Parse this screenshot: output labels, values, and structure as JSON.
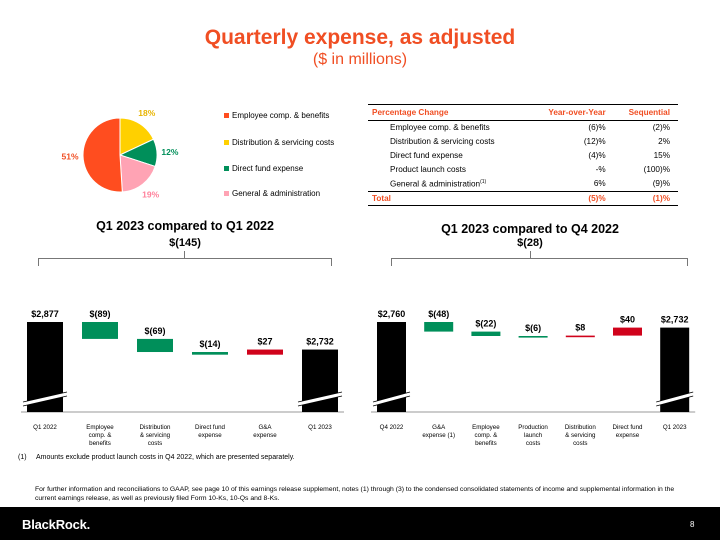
{
  "header": {
    "title": "Quarterly expense, as adjusted",
    "subtitle": "($ in millions)"
  },
  "legend": [
    {
      "label": "Employee comp. & benefits",
      "color": "#ff4d1f"
    },
    {
      "label": "Distribution & servicing costs",
      "color": "#ffd000"
    },
    {
      "label": "Direct fund expense",
      "color": "#008f5a"
    },
    {
      "label": "General & administration",
      "color": "#ffa3b4"
    }
  ],
  "pct_table": {
    "headers": [
      "Percentage Change",
      "Year-over-Year",
      "Sequential"
    ],
    "rows": [
      {
        "name": "Employee comp. & benefits",
        "sup": "",
        "yoy": "(6)%",
        "seq": "(2)%"
      },
      {
        "name": "Distribution & servicing costs",
        "sup": "",
        "yoy": "(12)%",
        "seq": "2%"
      },
      {
        "name": "Direct fund expense",
        "sup": "",
        "yoy": "(4)%",
        "seq": "15%"
      },
      {
        "name": "Product launch costs",
        "sup": "",
        "yoy": "-%",
        "seq": "(100)%"
      },
      {
        "name": "General & administration",
        "sup": "(1)",
        "yoy": "6%",
        "seq": "(9)%"
      }
    ],
    "total": {
      "name": "Total",
      "yoy": "(5)%",
      "seq": "(1)%"
    }
  },
  "chart_data": [
    {
      "type": "pie",
      "slices": [
        {
          "label": "Employee comp. & benefits",
          "value": 51,
          "display": "51%",
          "color": "#ff4d1f",
          "label_color": "#f04e23"
        },
        {
          "label": "Distribution & servicing costs",
          "value": 18,
          "display": "18%",
          "color": "#ffd000",
          "label_color": "#e8b400"
        },
        {
          "label": "Direct fund expense",
          "value": 12,
          "display": "12%",
          "color": "#008f5a",
          "label_color": "#008f5a"
        },
        {
          "label": "General & administration",
          "value": 19,
          "display": "19%",
          "color": "#ffa3b4",
          "label_color": "#ff7f99"
        }
      ]
    },
    {
      "type": "bar",
      "subtype": "waterfall",
      "title": "Q1 2023 compared to Q1 2022",
      "total_change": "$(145)",
      "categories": [
        "Q1 2022",
        "Employee comp. & benefits",
        "Distribution & servicing costs",
        "Direct fund expense",
        "G&A expense",
        "Q1 2023"
      ],
      "category_lines": [
        [
          "Q1 2022"
        ],
        [
          "Employee",
          "comp. &",
          "benefits"
        ],
        [
          "Distribution",
          "& servicing",
          "costs"
        ],
        [
          "Direct fund",
          "expense"
        ],
        [
          "G&A",
          "expense"
        ],
        [
          "Q1 2023"
        ]
      ],
      "values": [
        2877,
        -89,
        -69,
        -14,
        27,
        2732
      ],
      "labels": [
        "$2,877",
        "$(89)",
        "$(69)",
        "$(14)",
        "$27",
        "$2,732"
      ],
      "kinds": [
        "total",
        "delta",
        "delta",
        "delta",
        "delta",
        "total"
      ]
    },
    {
      "type": "bar",
      "subtype": "waterfall",
      "title": "Q1 2023 compared to Q4 2022",
      "total_change": "$(28)",
      "categories": [
        "Q4 2022",
        "G&A expense (1)",
        "Employee comp. & benefits",
        "Production launch costs",
        "Distribution & servicing costs",
        "Direct fund expense",
        "Q1 2023"
      ],
      "category_lines": [
        [
          "Q4 2022"
        ],
        [
          "G&A",
          "expense (1)"
        ],
        [
          "Employee",
          "comp. &",
          "benefits"
        ],
        [
          "Production",
          "launch",
          "costs"
        ],
        [
          "Distribution",
          "& servicing",
          "costs"
        ],
        [
          "Direct fund",
          "expense"
        ],
        [
          "Q1 2023"
        ]
      ],
      "values": [
        2760,
        -48,
        -22,
        -6,
        8,
        40,
        2732
      ],
      "labels": [
        "$2,760",
        "$(48)",
        "$(22)",
        "$(6)",
        "$8",
        "$40",
        "$2,732"
      ],
      "kinds": [
        "total",
        "delta",
        "delta",
        "delta",
        "delta",
        "delta",
        "total"
      ]
    }
  ],
  "colors": {
    "accent": "#f04e23",
    "decrease": "#008f5a",
    "increase": "#d0021b",
    "total": "#000000"
  },
  "footnote": {
    "num": "(1)",
    "text": "Amounts exclude product launch costs in Q4 2022, which are presented separately."
  },
  "further_info": "For further information and reconciliations to GAAP, see page 10 of this earnings release supplement, notes (1) through (3) to the condensed consolidated statements of income and supplemental information in the current earnings release, as well as previously filed Form 10-Ks, 10-Qs and 8-Ks.",
  "footer": {
    "logo": "BlackRock.",
    "page": "8"
  }
}
